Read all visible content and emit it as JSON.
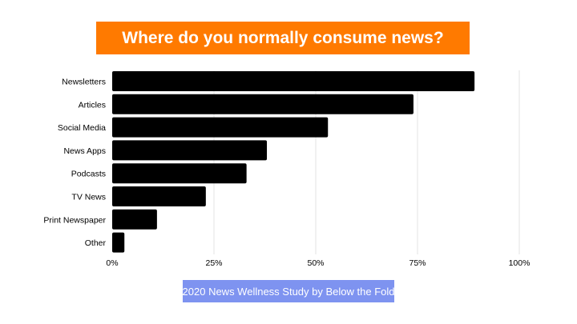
{
  "colors": {
    "title_bg": "#ff7a00",
    "bar": "#000000",
    "gridline": "#e3e3e3",
    "source_bg": "#7e93f0"
  },
  "chart_data": {
    "type": "bar",
    "orientation": "horizontal",
    "title": "Where do you normally consume news?",
    "categories": [
      "Newsletters",
      "Articles",
      "Social Media",
      "News Apps",
      "Podcasts",
      "TV News",
      "Print Newspaper",
      "Other"
    ],
    "values": [
      89,
      74,
      53,
      38,
      33,
      23,
      11,
      3
    ],
    "xlim": [
      0,
      100
    ],
    "x_ticks": [
      "0%",
      "25%",
      "50%",
      "75%",
      "100%"
    ],
    "x_tick_values": [
      0,
      25,
      50,
      75,
      100
    ],
    "grid": true,
    "legend": "none",
    "source": "2020 News Wellness Study by Below the Fold"
  }
}
